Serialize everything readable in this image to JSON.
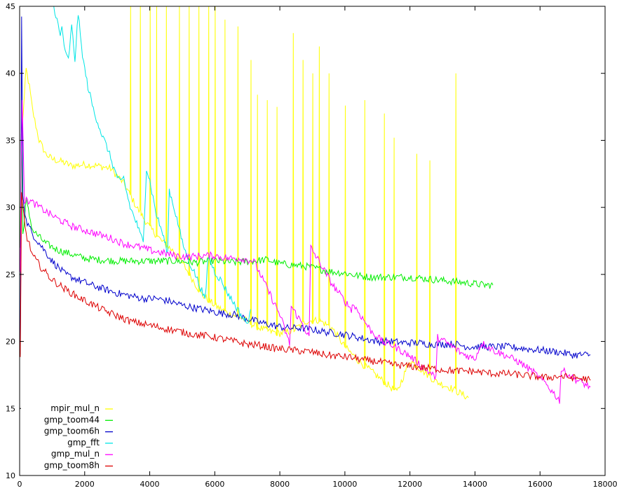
{
  "chart_data": {
    "type": "line",
    "title": "",
    "xlabel": "",
    "ylabel": "",
    "xlim": [
      0,
      18000
    ],
    "ylim": [
      10,
      45
    ],
    "x_ticks": [
      0,
      2000,
      4000,
      6000,
      8000,
      10000,
      12000,
      14000,
      16000,
      18000
    ],
    "x_tick_labels": [
      "0",
      "2000",
      "4000",
      "6000",
      "8000",
      "10000",
      "12000",
      "14000",
      "16000",
      "18000"
    ],
    "y_ticks": [
      10,
      15,
      20,
      25,
      30,
      35,
      40,
      45
    ],
    "y_tick_labels": [
      "10",
      "15",
      "20",
      "25",
      "30",
      "35",
      "40",
      "45"
    ],
    "grid": false,
    "legend_position": "bottom-left",
    "series": [
      {
        "name": "mpir_mul_n",
        "color": "#ffff00",
        "points": [
          [
            80,
            36
          ],
          [
            150,
            38.5
          ],
          [
            200,
            40.3
          ],
          [
            300,
            39
          ],
          [
            400,
            37.2
          ],
          [
            600,
            35
          ],
          [
            800,
            34
          ],
          [
            1000,
            33.6
          ],
          [
            1300,
            33.4
          ],
          [
            1600,
            33.1
          ],
          [
            2000,
            33.2
          ],
          [
            2400,
            33.1
          ],
          [
            2800,
            32.9
          ],
          [
            3200,
            31.8
          ],
          [
            3600,
            30
          ],
          [
            4000,
            28.5
          ],
          [
            4400,
            27.4
          ],
          [
            4800,
            26.6
          ],
          [
            5200,
            25.1
          ],
          [
            5600,
            23.5
          ],
          [
            6000,
            22.7
          ],
          [
            6400,
            22.1
          ],
          [
            6800,
            21.8
          ],
          [
            7200,
            21.2
          ],
          [
            7600,
            20.8
          ],
          [
            8000,
            20.6
          ],
          [
            8400,
            20.8
          ],
          [
            8800,
            21.5
          ],
          [
            9200,
            21.6
          ],
          [
            9600,
            21
          ],
          [
            10000,
            19.6
          ],
          [
            10400,
            18.6
          ],
          [
            10800,
            17.8
          ],
          [
            11200,
            17
          ],
          [
            11600,
            16.2
          ],
          [
            12000,
            18.6
          ],
          [
            12400,
            17.8
          ],
          [
            12800,
            17
          ],
          [
            13200,
            16.6
          ],
          [
            13500,
            16.2
          ],
          [
            13800,
            15.8
          ]
        ],
        "spikes": [
          [
            3400,
            45
          ],
          [
            3700,
            45
          ],
          [
            4000,
            45
          ],
          [
            4200,
            45
          ],
          [
            4500,
            45
          ],
          [
            4900,
            45
          ],
          [
            5200,
            45
          ],
          [
            5500,
            45
          ],
          [
            5800,
            45
          ],
          [
            6000,
            45
          ],
          [
            6300,
            44
          ],
          [
            6700,
            43.5
          ],
          [
            7100,
            41
          ],
          [
            7300,
            38.4
          ],
          [
            7600,
            38
          ],
          [
            7900,
            37.5
          ],
          [
            8400,
            43
          ],
          [
            8700,
            41
          ],
          [
            9000,
            40
          ],
          [
            9200,
            42
          ],
          [
            9500,
            40
          ],
          [
            10000,
            37.6
          ],
          [
            10600,
            38
          ],
          [
            11200,
            37
          ],
          [
            11500,
            35.2
          ],
          [
            12200,
            34
          ],
          [
            12600,
            33.5
          ],
          [
            13400,
            40
          ]
        ]
      },
      {
        "name": "gmp_toom44",
        "color": "#00ee00",
        "points": [
          [
            20,
            27
          ],
          [
            50,
            35.5
          ],
          [
            100,
            28
          ],
          [
            200,
            30.5
          ],
          [
            400,
            28.3
          ],
          [
            800,
            27.3
          ],
          [
            1200,
            26.8
          ],
          [
            1600,
            26.5
          ],
          [
            2000,
            26.2
          ],
          [
            2400,
            26.1
          ],
          [
            3000,
            26
          ],
          [
            3600,
            26
          ],
          [
            4200,
            26
          ],
          [
            4800,
            26
          ],
          [
            5400,
            25.9
          ],
          [
            6000,
            26
          ],
          [
            6600,
            25.9
          ],
          [
            7200,
            26
          ],
          [
            7600,
            26.1
          ],
          [
            8000,
            25.8
          ],
          [
            8400,
            25.7
          ],
          [
            8800,
            25.6
          ],
          [
            9200,
            25.4
          ],
          [
            9600,
            25.2
          ],
          [
            10000,
            25.1
          ],
          [
            10400,
            24.9
          ],
          [
            10800,
            24.8
          ],
          [
            11200,
            24.8
          ],
          [
            11600,
            24.8
          ],
          [
            12000,
            24.8
          ],
          [
            12400,
            24.7
          ],
          [
            12800,
            24.6
          ],
          [
            13200,
            24.5
          ],
          [
            13600,
            24.4
          ],
          [
            14000,
            24.3
          ],
          [
            14300,
            24.2
          ],
          [
            14550,
            24.2
          ]
        ]
      },
      {
        "name": "gmp_toom6h",
        "color": "#0000cc",
        "points": [
          [
            20,
            19
          ],
          [
            60,
            44
          ],
          [
            100,
            31
          ],
          [
            200,
            29
          ],
          [
            400,
            28
          ],
          [
            700,
            27
          ],
          [
            1000,
            26
          ],
          [
            1400,
            25
          ],
          [
            1800,
            24.6
          ],
          [
            2200,
            24.2
          ],
          [
            2600,
            23.9
          ],
          [
            3000,
            23.6
          ],
          [
            3400,
            23.4
          ],
          [
            3800,
            23.2
          ],
          [
            4200,
            23.2
          ],
          [
            4600,
            23
          ],
          [
            5000,
            22.7
          ],
          [
            5400,
            22.5
          ],
          [
            5800,
            22.3
          ],
          [
            6200,
            22.1
          ],
          [
            6600,
            22
          ],
          [
            7000,
            21.7
          ],
          [
            7400,
            21.4
          ],
          [
            7800,
            21.2
          ],
          [
            8200,
            21
          ],
          [
            8600,
            21
          ],
          [
            9000,
            20.9
          ],
          [
            9400,
            20.7
          ],
          [
            9800,
            20.6
          ],
          [
            10200,
            20.4
          ],
          [
            10600,
            20.2
          ],
          [
            11000,
            20
          ],
          [
            11400,
            20
          ],
          [
            11800,
            19.9
          ],
          [
            12200,
            19.9
          ],
          [
            12600,
            19.8
          ],
          [
            13000,
            19.8
          ],
          [
            13400,
            19.8
          ],
          [
            13800,
            19.6
          ],
          [
            14200,
            19.6
          ],
          [
            14600,
            19.6
          ],
          [
            15000,
            19.6
          ],
          [
            15400,
            19.5
          ],
          [
            15800,
            19.4
          ],
          [
            16200,
            19.3
          ],
          [
            16600,
            19.2
          ],
          [
            17000,
            19
          ],
          [
            17400,
            19
          ],
          [
            17550,
            19
          ]
        ]
      },
      {
        "name": "gmp_fft",
        "color": "#00e5e5",
        "points": [
          [
            1050,
            45
          ],
          [
            1150,
            44
          ],
          [
            1250,
            42.7
          ],
          [
            1300,
            43.5
          ],
          [
            1400,
            41.5
          ],
          [
            1500,
            41
          ],
          [
            1600,
            43.5
          ],
          [
            1700,
            41
          ],
          [
            1800,
            44.5
          ],
          [
            1900,
            42
          ],
          [
            2000,
            40.3
          ],
          [
            2100,
            39
          ],
          [
            2200,
            38
          ],
          [
            2300,
            37
          ],
          [
            2400,
            36.4
          ],
          [
            2500,
            35.6
          ],
          [
            2600,
            35
          ],
          [
            2700,
            34.4
          ],
          [
            2800,
            33.7
          ],
          [
            2900,
            32.9
          ],
          [
            3000,
            32.3
          ],
          [
            3100,
            31.8
          ],
          [
            3200,
            32.2
          ],
          [
            3300,
            31
          ],
          [
            3400,
            30
          ],
          [
            3500,
            29.4
          ],
          [
            3600,
            28.8
          ],
          [
            3700,
            28
          ],
          [
            3800,
            27.5
          ],
          [
            3900,
            32.9
          ],
          [
            4000,
            32
          ],
          [
            4200,
            29.5
          ],
          [
            4400,
            28
          ],
          [
            4550,
            26.6
          ],
          [
            4600,
            31.3
          ],
          [
            4800,
            29.5
          ],
          [
            5000,
            27.4
          ],
          [
            5200,
            26
          ],
          [
            5400,
            25
          ],
          [
            5600,
            23.8
          ],
          [
            5700,
            23
          ],
          [
            5800,
            26.4
          ],
          [
            6000,
            25.2
          ],
          [
            6200,
            24.5
          ],
          [
            6400,
            23.6
          ],
          [
            6600,
            22.8
          ],
          [
            6800,
            22
          ],
          [
            7000,
            21.3
          ],
          [
            7100,
            22.4
          ]
        ]
      },
      {
        "name": "gmp_mul_n",
        "color": "#ff00ff",
        "points": [
          [
            20,
            25
          ],
          [
            50,
            34
          ],
          [
            80,
            38.2
          ],
          [
            150,
            30.5
          ],
          [
            300,
            30.5
          ],
          [
            500,
            30.2
          ],
          [
            800,
            29.7
          ],
          [
            1200,
            29.1
          ],
          [
            1600,
            28.6
          ],
          [
            2000,
            28.3
          ],
          [
            2400,
            28
          ],
          [
            2800,
            27.7
          ],
          [
            3200,
            27.3
          ],
          [
            3600,
            27.1
          ],
          [
            4000,
            26.8
          ],
          [
            4400,
            26.6
          ],
          [
            4800,
            26.4
          ],
          [
            5200,
            26.3
          ],
          [
            5600,
            26.4
          ],
          [
            6000,
            26.4
          ],
          [
            6400,
            26.2
          ],
          [
            6800,
            26.2
          ],
          [
            7200,
            26
          ],
          [
            7600,
            24
          ],
          [
            8000,
            22
          ],
          [
            8300,
            19.8
          ],
          [
            8350,
            22.6
          ],
          [
            8700,
            21.3
          ],
          [
            8900,
            20.3
          ],
          [
            8950,
            27
          ],
          [
            9200,
            26
          ],
          [
            9600,
            24.3
          ],
          [
            10000,
            23
          ],
          [
            10200,
            22.4
          ],
          [
            10250,
            22.8
          ],
          [
            10800,
            20.8
          ],
          [
            11200,
            19.9
          ],
          [
            11400,
            19.8
          ],
          [
            12000,
            18.9
          ],
          [
            12400,
            18.1
          ],
          [
            12800,
            17.3
          ],
          [
            12850,
            20.3
          ],
          [
            13200,
            19.8
          ],
          [
            13600,
            19.1
          ],
          [
            14000,
            18.7
          ],
          [
            14200,
            19.9
          ],
          [
            14600,
            19.3
          ],
          [
            15000,
            18.9
          ],
          [
            15400,
            18.4
          ],
          [
            15800,
            17.7
          ],
          [
            16200,
            16.8
          ],
          [
            16600,
            15.6
          ],
          [
            16650,
            17.9
          ],
          [
            17000,
            17.3
          ],
          [
            17300,
            16.9
          ],
          [
            17550,
            16.6
          ]
        ]
      },
      {
        "name": "gmp_toom8h",
        "color": "#dd0000",
        "points": [
          [
            20,
            18.7
          ],
          [
            60,
            31
          ],
          [
            100,
            30
          ],
          [
            200,
            28
          ],
          [
            400,
            26.4
          ],
          [
            700,
            25.4
          ],
          [
            1000,
            24.6
          ],
          [
            1400,
            23.9
          ],
          [
            1800,
            23.3
          ],
          [
            2200,
            22.8
          ],
          [
            2600,
            22.3
          ],
          [
            3000,
            21.9
          ],
          [
            3400,
            21.5
          ],
          [
            3800,
            21.3
          ],
          [
            4200,
            21.1
          ],
          [
            4600,
            20.9
          ],
          [
            5000,
            20.7
          ],
          [
            5400,
            20.5
          ],
          [
            5800,
            20.4
          ],
          [
            6200,
            20.2
          ],
          [
            6600,
            20
          ],
          [
            7000,
            19.8
          ],
          [
            7400,
            19.7
          ],
          [
            7800,
            19.5
          ],
          [
            8200,
            19.4
          ],
          [
            8600,
            19.3
          ],
          [
            9000,
            19.2
          ],
          [
            9400,
            19
          ],
          [
            9800,
            18.9
          ],
          [
            10200,
            18.8
          ],
          [
            10600,
            18.6
          ],
          [
            11000,
            18.5
          ],
          [
            11400,
            18.3
          ],
          [
            11800,
            18.2
          ],
          [
            12200,
            18.1
          ],
          [
            12600,
            18
          ],
          [
            13000,
            17.9
          ],
          [
            13400,
            17.8
          ],
          [
            13800,
            17.8
          ],
          [
            14200,
            17.7
          ],
          [
            14600,
            17.6
          ],
          [
            15000,
            17.6
          ],
          [
            15400,
            17.5
          ],
          [
            15800,
            17.4
          ],
          [
            16200,
            17.3
          ],
          [
            16600,
            17.4
          ],
          [
            17000,
            17.3
          ],
          [
            17400,
            17.2
          ],
          [
            17550,
            17.1
          ]
        ]
      }
    ]
  }
}
